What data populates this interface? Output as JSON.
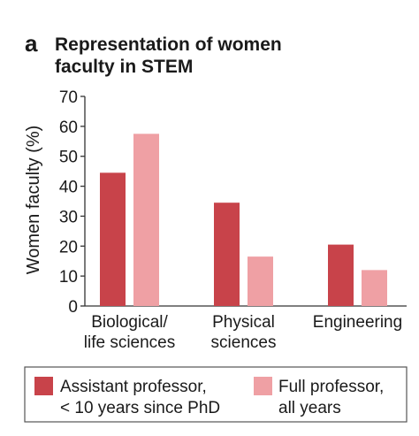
{
  "panel_letter": "a",
  "title_lines": [
    "Representation of women",
    "faculty in STEM"
  ],
  "colors": {
    "assistant": "#C8434A",
    "full": "#EFA0A4",
    "axis": "#333333",
    "legend_border": "#555555"
  },
  "chart_data": {
    "type": "bar",
    "title": "Representation of women faculty in STEM",
    "ylabel": "Women faculty (%)",
    "xlabel": "",
    "ylim": [
      0,
      70
    ],
    "yticks": [
      0,
      10,
      20,
      30,
      40,
      50,
      60,
      70
    ],
    "grid": false,
    "legend_position": "bottom",
    "categories": [
      [
        "Biological/",
        "life sciences"
      ],
      [
        "Physical",
        "sciences"
      ],
      [
        "Engineering"
      ]
    ],
    "series": [
      {
        "name": "Assistant professor,\n< 10 years since PhD",
        "legend_lines": [
          "Assistant professor,",
          "< 10 years since PhD"
        ],
        "values": [
          44.5,
          34.5,
          20.5
        ]
      },
      {
        "name": "Full professor,\nall years",
        "legend_lines": [
          "Full professor,",
          "all years"
        ],
        "values": [
          57.5,
          16.5,
          12
        ]
      }
    ]
  }
}
